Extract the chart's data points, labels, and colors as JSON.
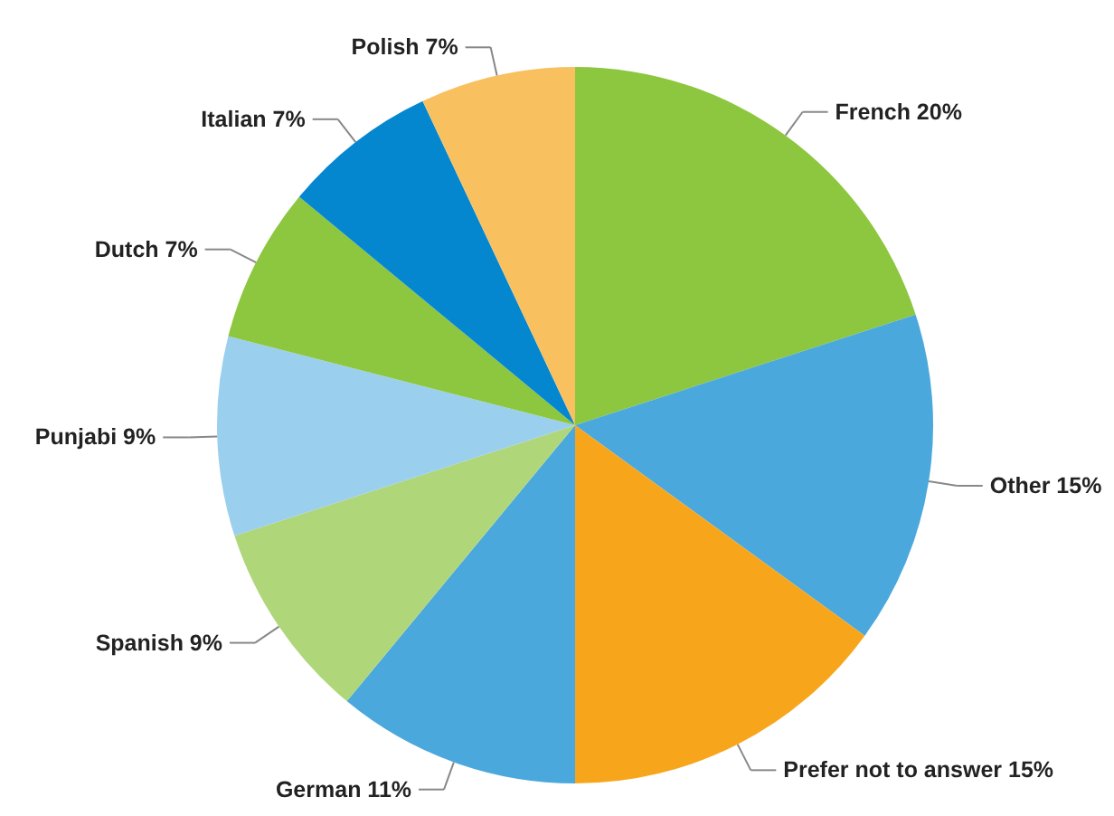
{
  "chart_data": {
    "type": "pie",
    "categories": [
      "French",
      "Other",
      "Prefer not to answer",
      "German",
      "Spanish",
      "Punjabi",
      "Dutch",
      "Italian",
      "Polish"
    ],
    "values": [
      20,
      15,
      15,
      11,
      9,
      9,
      7,
      7,
      7
    ],
    "value_labels": [
      "20%",
      "15%",
      "15%",
      "11%",
      "9%",
      "9%",
      "7%",
      "7%",
      "7%"
    ],
    "colors": [
      "#8dc63f",
      "#4aa8dc",
      "#f7a61c",
      "#4aa8dc",
      "#b0d67a",
      "#9bcfee",
      "#8dc63f",
      "#0587d0",
      "#f9c05f"
    ]
  }
}
